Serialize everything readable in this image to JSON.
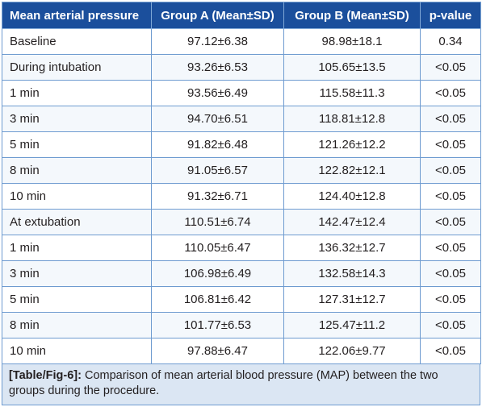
{
  "table": {
    "headers": [
      "Mean arterial pressure",
      "Group A (Mean±SD)",
      "Group B (Mean±SD)",
      "p-value"
    ],
    "rows": [
      [
        "Baseline",
        "97.12±6.38",
        "98.98±18.1",
        "0.34"
      ],
      [
        "During intubation",
        "93.26±6.53",
        "105.65±13.5",
        "<0.05"
      ],
      [
        "1 min",
        "93.56±6.49",
        "115.58±11.3",
        "<0.05"
      ],
      [
        "3 min",
        "94.70±6.51",
        "118.81±12.8",
        "<0.05"
      ],
      [
        "5 min",
        "91.82±6.48",
        "121.26±12.2",
        "<0.05"
      ],
      [
        "8 min",
        "91.05±6.57",
        "122.82±12.1",
        "<0.05"
      ],
      [
        "10 min",
        "91.32±6.71",
        "124.40±12.8",
        "<0.05"
      ],
      [
        "At extubation",
        "110.51±6.74",
        "142.47±12.4",
        "<0.05"
      ],
      [
        "1 min",
        "110.05±6.47",
        "136.32±12.7",
        "<0.05"
      ],
      [
        "3 min",
        "106.98±6.49",
        "132.58±14.3",
        "<0.05"
      ],
      [
        "5 min",
        "106.81±6.42",
        "127.31±12.7",
        "<0.05"
      ],
      [
        "8 min",
        "101.77±6.53",
        "125.47±11.2",
        "<0.05"
      ],
      [
        "10 min",
        "97.88±6.47",
        "122.06±9.77",
        "<0.05"
      ]
    ]
  },
  "caption": {
    "label": "[Table/Fig-6]:",
    "text": " Comparison of mean arterial blood pressure (MAP) between the two groups during the procedure."
  },
  "colors": {
    "header_bg": "#1b4f9c",
    "border": "#6e9bd0",
    "caption_bg": "#dbe6f3"
  }
}
